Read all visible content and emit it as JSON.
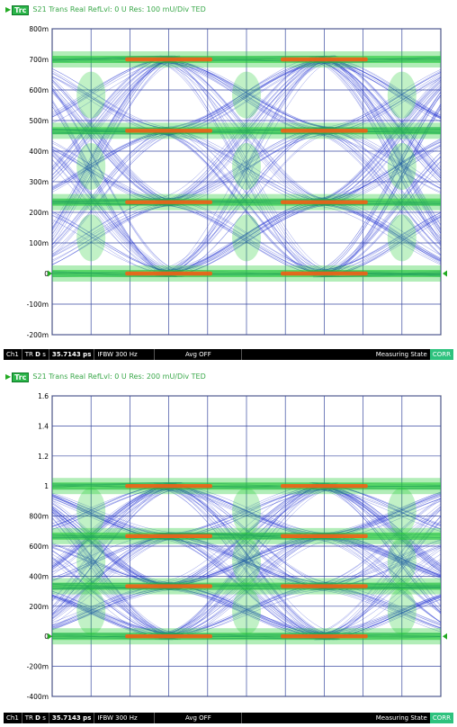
{
  "colors": {
    "grid": "#3a4aa0",
    "trace_base": "#2030d0",
    "trace_mid": "#22cc33",
    "trace_hot": "#ff5a10",
    "header_text": "#3aa84a",
    "status_bg": "#000000",
    "corr_bg": "#2ec27e"
  },
  "status": {
    "channel": "Ch1",
    "tr": "TR",
    "d": "D",
    "s": "s",
    "time": "35.7143 ps",
    "ifbw": "IFBW 300  Hz",
    "avg": "Avg OFF",
    "state": "Measuring State",
    "corr": "CORR"
  },
  "chart_data": [
    {
      "type": "eye-diagram",
      "trace_label": "Trc",
      "trace_info": "S21 Trans Real RefLvl: 0  U Res: 100 mU/Div  TED",
      "y_ticks": [
        "800m",
        "700m",
        "600m",
        "500m",
        "400m",
        "300m",
        "200m",
        "100m",
        "0",
        "-100m",
        "-200m"
      ],
      "ylim": [
        -0.2,
        0.8
      ],
      "levels": [
        0,
        0.2333,
        0.4667,
        0.7
      ],
      "ui_count": 2,
      "x_divisions": 10,
      "y_divisions": 10
    },
    {
      "type": "eye-diagram",
      "trace_label": "Trc",
      "trace_info": "S21 Trans Real RefLvl: 0  U Res: 200 mU/Div  TED",
      "y_ticks": [
        "1.6",
        "1.4",
        "1.2",
        "1",
        "800m",
        "600m",
        "400m",
        "200m",
        "0",
        "-200m",
        "-400m"
      ],
      "ylim": [
        -0.4,
        1.6
      ],
      "levels": [
        0,
        0.3333,
        0.6667,
        1.0
      ],
      "ui_count": 2,
      "x_divisions": 10,
      "y_divisions": 10
    }
  ]
}
